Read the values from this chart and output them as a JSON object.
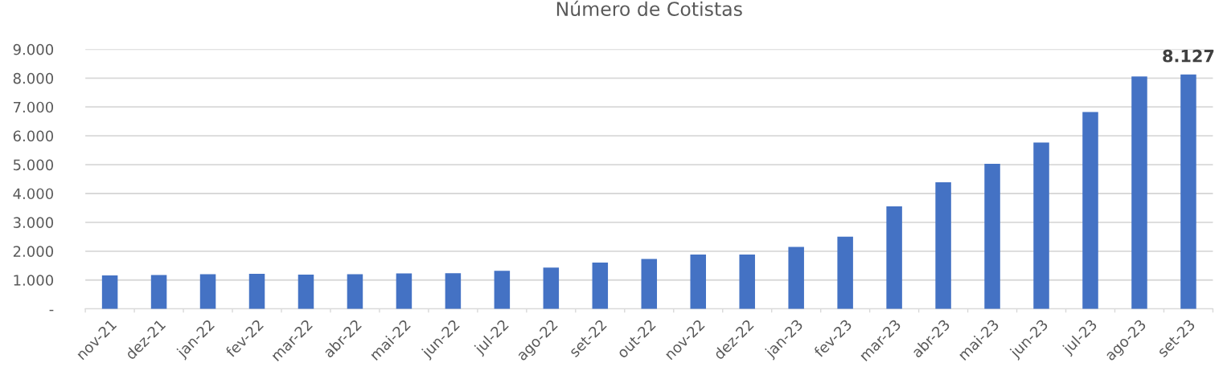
{
  "chart_data": {
    "type": "bar",
    "title": "Número de Cotistas",
    "categories": [
      "nov-21",
      "dez-21",
      "jan-22",
      "fev-22",
      "mar-22",
      "abr-22",
      "mai-22",
      "jun-22",
      "jul-22",
      "ago-22",
      "set-22",
      "out-22",
      "nov-22",
      "dez-22",
      "jan-23",
      "fev-23",
      "mar-23",
      "abr-23",
      "mai-23",
      "jun-23",
      "jul-23",
      "ago-23",
      "set-23"
    ],
    "values": [
      1160,
      1175,
      1200,
      1215,
      1190,
      1200,
      1230,
      1240,
      1320,
      1430,
      1605,
      1730,
      1885,
      1885,
      2150,
      2505,
      3555,
      4390,
      5030,
      5765,
      6825,
      8060,
      8127
    ],
    "value_labels": [
      null,
      null,
      null,
      null,
      null,
      null,
      null,
      null,
      null,
      null,
      null,
      null,
      null,
      null,
      null,
      null,
      null,
      null,
      null,
      null,
      null,
      null,
      "8.127"
    ],
    "color": "#4472c4",
    "ylim": [
      0,
      9000
    ],
    "yticks": [
      {
        "value": 0,
        "label": "-"
      },
      {
        "value": 1000,
        "label": "1.000"
      },
      {
        "value": 2000,
        "label": "2.000"
      },
      {
        "value": 3000,
        "label": "3.000"
      },
      {
        "value": 4000,
        "label": "4.000"
      },
      {
        "value": 5000,
        "label": "5.000"
      },
      {
        "value": 6000,
        "label": "6.000"
      },
      {
        "value": 7000,
        "label": "7.000"
      },
      {
        "value": 8000,
        "label": "8.000"
      },
      {
        "value": 9000,
        "label": "9.000"
      }
    ],
    "grid": "y"
  }
}
